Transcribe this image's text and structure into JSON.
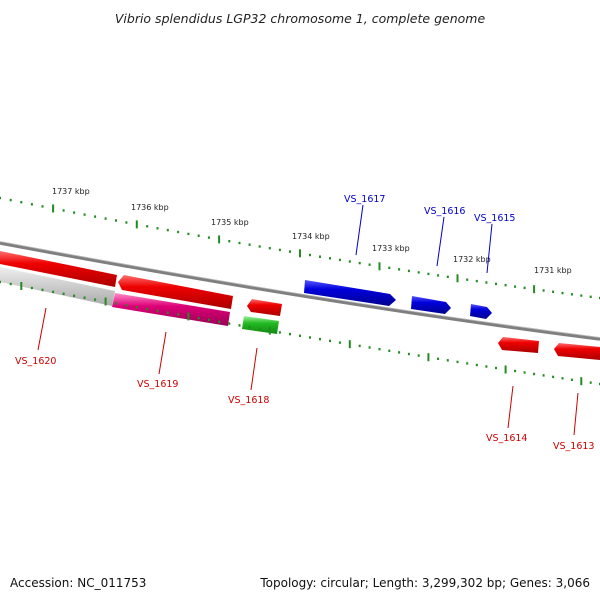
{
  "title": "Vibrio splendidus LGP32 chromosome 1, complete genome",
  "accession_text": "Accession: NC_011753",
  "summary_text": "Topology: circular; Length: 3,299,302 bp; Genes: 3,066",
  "scale_labels": [
    {
      "text": "1737 kbp",
      "kbp": 1737
    },
    {
      "text": "1736 kbp",
      "kbp": 1736
    },
    {
      "text": "1735 kbp",
      "kbp": 1735
    },
    {
      "text": "1734 kbp",
      "kbp": 1734
    },
    {
      "text": "1733 kbp",
      "kbp": 1733
    },
    {
      "text": "1732 kbp",
      "kbp": 1732
    },
    {
      "text": "1731 kbp",
      "kbp": 1731
    }
  ],
  "genes": [
    {
      "id": "VS_1620",
      "color": "#ee0000"
    },
    {
      "id": "VS_1619",
      "color": "#dd0077"
    },
    {
      "id": "VS_1618",
      "color": "#22bb22"
    },
    {
      "id": "VS_1617",
      "color": "#0000dd"
    },
    {
      "id": "VS_1616",
      "color": "#0000dd"
    },
    {
      "id": "VS_1615",
      "color": "#0000dd"
    },
    {
      "id": "VS_1614",
      "color": "#ee0000"
    },
    {
      "id": "VS_1613",
      "color": "#ee0000"
    }
  ],
  "colors": {
    "backbone": "#7f7f7f",
    "scale_ticks": "#228b22",
    "forward_label": "#0000cc",
    "reverse_label": "#cc0000"
  }
}
